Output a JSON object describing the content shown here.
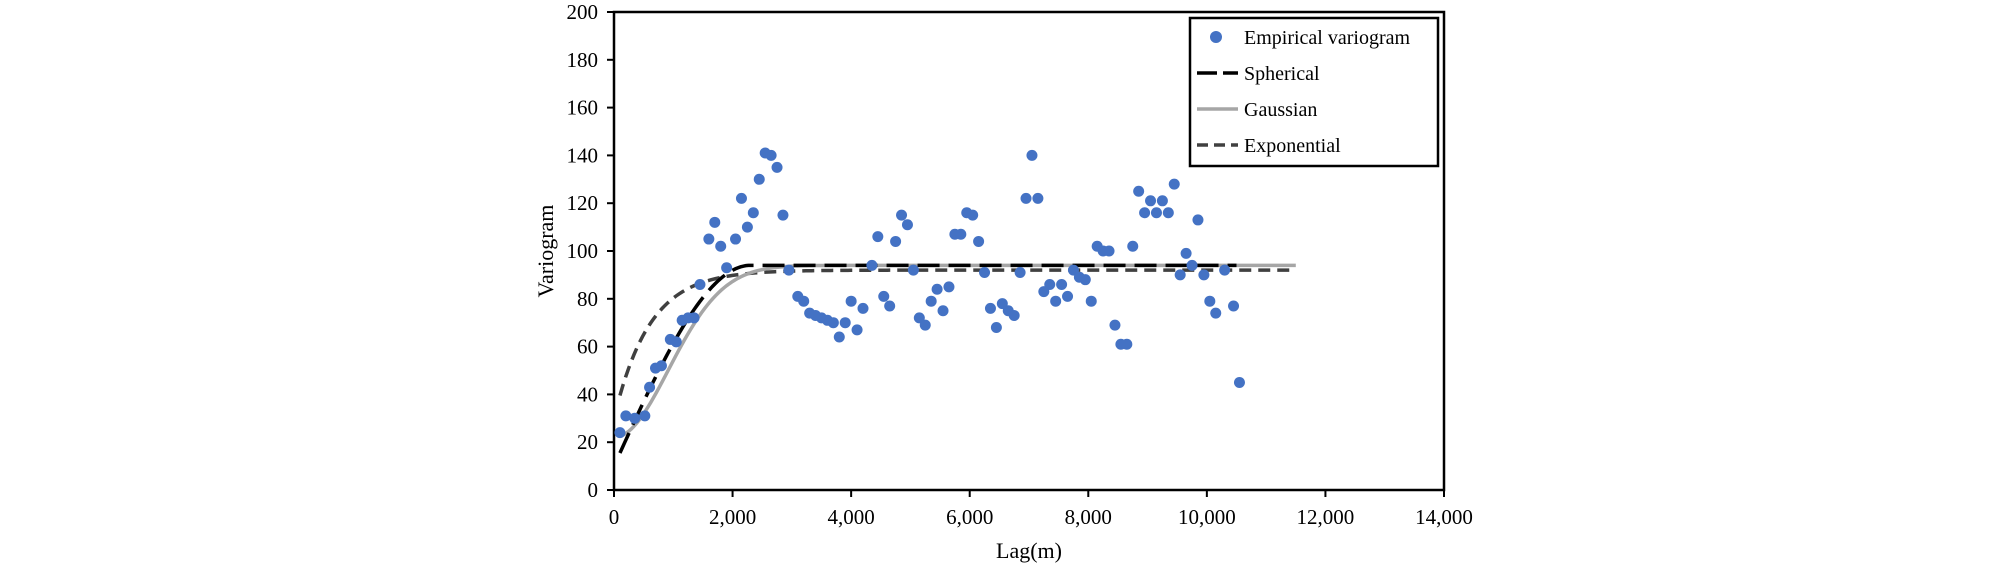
{
  "chart_data": {
    "type": "scatter",
    "title": "",
    "xlabel": "Lag(m)",
    "ylabel": "Variogram",
    "xlim": [
      0,
      14000
    ],
    "ylim": [
      0,
      200
    ],
    "x_ticks": [
      0,
      2000,
      4000,
      6000,
      8000,
      10000,
      12000,
      14000
    ],
    "x_tick_labels": [
      "0",
      "2,000",
      "4,000",
      "6,000",
      "8,000",
      "10,000",
      "12,000",
      "14,000"
    ],
    "y_ticks": [
      0,
      20,
      40,
      60,
      80,
      100,
      120,
      140,
      160,
      180,
      200
    ],
    "y_tick_labels": [
      "0",
      "20",
      "40",
      "60",
      "80",
      "100",
      "120",
      "140",
      "160",
      "180",
      "200"
    ],
    "grid": false,
    "legend_position": "top-right",
    "colors": {
      "points": "#4472C4",
      "spherical": "#000000",
      "gaussian": "#A6A6A6",
      "exponential": "#404040"
    },
    "series": [
      {
        "name": "Empirical variogram",
        "kind": "points",
        "points": [
          [
            100,
            24
          ],
          [
            200,
            31
          ],
          [
            350,
            30
          ],
          [
            520,
            31
          ],
          [
            600,
            43
          ],
          [
            700,
            51
          ],
          [
            800,
            52
          ],
          [
            950,
            63
          ],
          [
            1050,
            62
          ],
          [
            1150,
            71
          ],
          [
            1250,
            72
          ],
          [
            1350,
            72
          ],
          [
            1450,
            86
          ],
          [
            1600,
            105
          ],
          [
            1700,
            112
          ],
          [
            1800,
            102
          ],
          [
            1900,
            93
          ],
          [
            2050,
            105
          ],
          [
            2150,
            122
          ],
          [
            2250,
            110
          ],
          [
            2350,
            116
          ],
          [
            2450,
            130
          ],
          [
            2550,
            141
          ],
          [
            2650,
            140
          ],
          [
            2750,
            135
          ],
          [
            2850,
            115
          ],
          [
            2950,
            92
          ],
          [
            3100,
            81
          ],
          [
            3200,
            79
          ],
          [
            3300,
            74
          ],
          [
            3400,
            73
          ],
          [
            3500,
            72
          ],
          [
            3600,
            71
          ],
          [
            3700,
            70
          ],
          [
            3800,
            64
          ],
          [
            3900,
            70
          ],
          [
            4000,
            79
          ],
          [
            4100,
            67
          ],
          [
            4200,
            76
          ],
          [
            4350,
            94
          ],
          [
            4450,
            106
          ],
          [
            4550,
            81
          ],
          [
            4650,
            77
          ],
          [
            4750,
            104
          ],
          [
            4850,
            115
          ],
          [
            4950,
            111
          ],
          [
            5050,
            92
          ],
          [
            5150,
            72
          ],
          [
            5250,
            69
          ],
          [
            5350,
            79
          ],
          [
            5450,
            84
          ],
          [
            5550,
            75
          ],
          [
            5650,
            85
          ],
          [
            5750,
            107
          ],
          [
            5850,
            107
          ],
          [
            5950,
            116
          ],
          [
            6050,
            115
          ],
          [
            6150,
            104
          ],
          [
            6250,
            91
          ],
          [
            6350,
            76
          ],
          [
            6450,
            68
          ],
          [
            6550,
            78
          ],
          [
            6650,
            75
          ],
          [
            6750,
            73
          ],
          [
            6850,
            91
          ],
          [
            6950,
            122
          ],
          [
            7050,
            140
          ],
          [
            7150,
            122
          ],
          [
            7250,
            83
          ],
          [
            7350,
            86
          ],
          [
            7450,
            79
          ],
          [
            7550,
            86
          ],
          [
            7650,
            81
          ],
          [
            7750,
            92
          ],
          [
            7850,
            89
          ],
          [
            7950,
            88
          ],
          [
            8050,
            79
          ],
          [
            8150,
            102
          ],
          [
            8250,
            100
          ],
          [
            8350,
            100
          ],
          [
            8450,
            69
          ],
          [
            8550,
            61
          ],
          [
            8650,
            61
          ],
          [
            8750,
            102
          ],
          [
            8850,
            125
          ],
          [
            8950,
            116
          ],
          [
            9050,
            121
          ],
          [
            9150,
            116
          ],
          [
            9250,
            121
          ],
          [
            9350,
            116
          ],
          [
            9450,
            128
          ],
          [
            9550,
            90
          ],
          [
            9650,
            99
          ],
          [
            9750,
            94
          ],
          [
            9850,
            113
          ],
          [
            9950,
            90
          ],
          [
            10050,
            79
          ],
          [
            10150,
            74
          ],
          [
            10300,
            92
          ],
          [
            10450,
            77
          ],
          [
            10550,
            45
          ]
        ]
      },
      {
        "name": "Spherical",
        "kind": "line",
        "dash": "long-dash",
        "model": "spherical",
        "nugget": 10,
        "sill": 94,
        "range": 2300,
        "x_range": [
          100,
          10500
        ]
      },
      {
        "name": "Gaussian",
        "kind": "line",
        "dash": "solid",
        "model": "gaussian",
        "nugget": 22,
        "sill": 94,
        "range": 1300,
        "x_range": [
          100,
          11500
        ]
      },
      {
        "name": "Exponential",
        "kind": "line",
        "dash": "dash",
        "model": "exponential",
        "nugget": 30,
        "sill": 92,
        "range": 600,
        "x_range": [
          100,
          11500
        ]
      }
    ]
  }
}
